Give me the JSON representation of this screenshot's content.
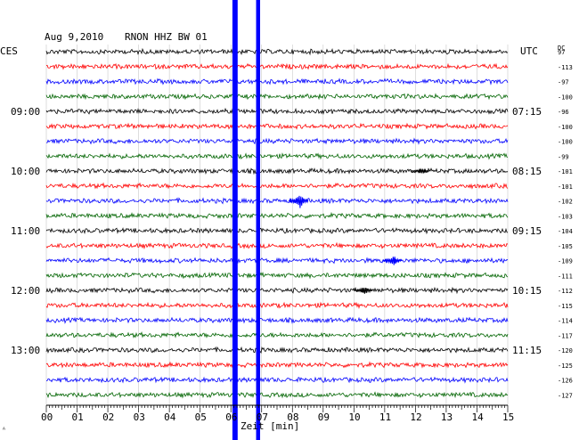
{
  "header": {
    "date": "Aug 9,2010",
    "station": "RNON HHZ BW 01",
    "left_zone": "CES",
    "right_zone": "UTC",
    "dc_label": "DC"
  },
  "chart_data": {
    "type": "line",
    "title": "",
    "xlabel": "Zeit [min]",
    "x_ticks": [
      "00",
      "01",
      "02",
      "03",
      "04",
      "05",
      "06",
      "07",
      "08",
      "09",
      "10",
      "11",
      "12",
      "13",
      "14",
      "15"
    ],
    "xlim": [
      0,
      15
    ],
    "trace_colors": [
      "#000000",
      "#ff0000",
      "#0000ff",
      "#006400"
    ],
    "traces": [
      {
        "dc": "97",
        "color": "#000000",
        "left_time": "",
        "right_time": ""
      },
      {
        "dc": "-113",
        "color": "#ff0000",
        "left_time": "",
        "right_time": ""
      },
      {
        "dc": "-97",
        "color": "#0000ff",
        "left_time": "",
        "right_time": ""
      },
      {
        "dc": "-100",
        "color": "#006400",
        "left_time": "",
        "right_time": ""
      },
      {
        "dc": "-96",
        "color": "#000000",
        "left_time": "09:00",
        "right_time": "07:15"
      },
      {
        "dc": "-100",
        "color": "#ff0000",
        "left_time": "",
        "right_time": ""
      },
      {
        "dc": "-100",
        "color": "#0000ff",
        "left_time": "",
        "right_time": ""
      },
      {
        "dc": "-99",
        "color": "#006400",
        "left_time": "",
        "right_time": ""
      },
      {
        "dc": "-101",
        "color": "#000000",
        "left_time": "10:00",
        "right_time": "08:15"
      },
      {
        "dc": "-101",
        "color": "#ff0000",
        "left_time": "",
        "right_time": ""
      },
      {
        "dc": "-102",
        "color": "#0000ff",
        "left_time": "",
        "right_time": ""
      },
      {
        "dc": "-103",
        "color": "#006400",
        "left_time": "",
        "right_time": ""
      },
      {
        "dc": "-104",
        "color": "#000000",
        "left_time": "11:00",
        "right_time": "09:15"
      },
      {
        "dc": "-105",
        "color": "#ff0000",
        "left_time": "",
        "right_time": ""
      },
      {
        "dc": "-109",
        "color": "#0000ff",
        "left_time": "",
        "right_time": ""
      },
      {
        "dc": "-111",
        "color": "#006400",
        "left_time": "",
        "right_time": ""
      },
      {
        "dc": "-112",
        "color": "#000000",
        "left_time": "12:00",
        "right_time": "10:15"
      },
      {
        "dc": "-115",
        "color": "#ff0000",
        "left_time": "",
        "right_time": ""
      },
      {
        "dc": "-114",
        "color": "#0000ff",
        "left_time": "",
        "right_time": ""
      },
      {
        "dc": "-117",
        "color": "#006400",
        "left_time": "",
        "right_time": ""
      },
      {
        "dc": "-120",
        "color": "#000000",
        "left_time": "13:00",
        "right_time": "11:15"
      },
      {
        "dc": "-125",
        "color": "#ff0000",
        "left_time": "",
        "right_time": ""
      },
      {
        "dc": "-126",
        "color": "#0000ff",
        "left_time": "",
        "right_time": ""
      },
      {
        "dc": "-127",
        "color": "#006400",
        "left_time": "",
        "right_time": ""
      }
    ],
    "events": [
      {
        "trace": 10,
        "minute": 8.25,
        "strength": 1.0
      },
      {
        "trace": 14,
        "minute": 11.3,
        "strength": 0.7
      },
      {
        "trace": 16,
        "minute": 10.35,
        "strength": 0.55
      },
      {
        "trace": 8,
        "minute": 12.2,
        "strength": 0.35
      }
    ],
    "disturbances": [
      {
        "minute_start": 6.05,
        "minute_end": 6.22,
        "color": "#0000ff"
      },
      {
        "minute_start": 6.82,
        "minute_end": 6.95,
        "color": "#0000ff"
      }
    ],
    "grid": true
  },
  "footer_mark": "ᴬ"
}
